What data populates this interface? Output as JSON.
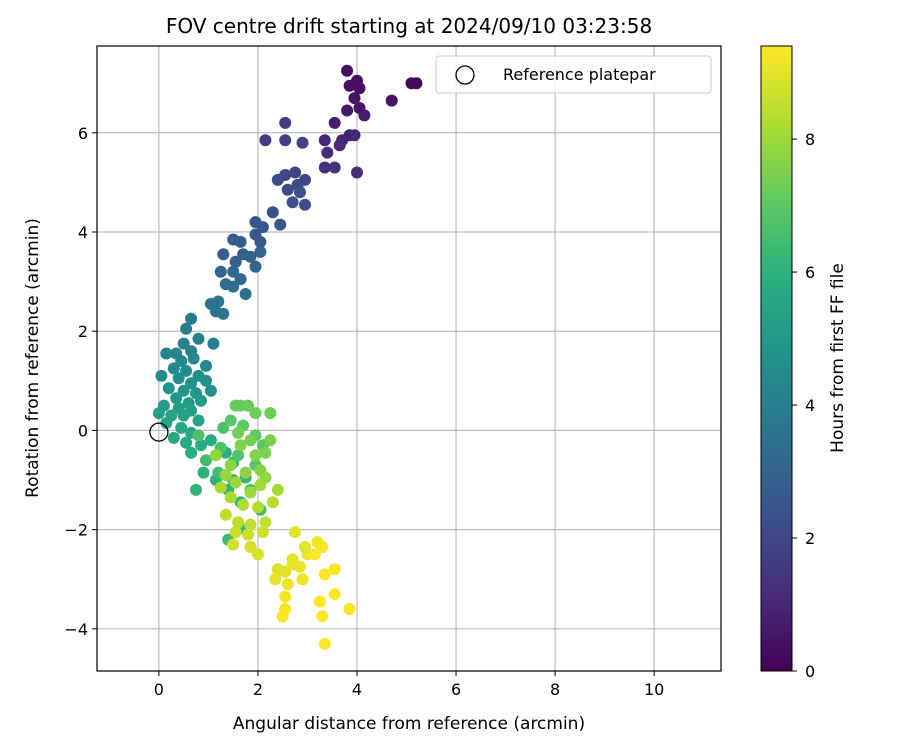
{
  "chart_data": {
    "type": "scatter",
    "title": "FOV centre drift starting at 2024/09/10 03:23:58",
    "xlabel": "Angular distance from reference (arcmin)",
    "ylabel": "Rotation from reference (arcmin)",
    "xlim": [
      -1.25,
      11.35
    ],
    "ylim": [
      -4.85,
      7.75
    ],
    "x_ticks": [
      0,
      2,
      4,
      6,
      8,
      10
    ],
    "y_ticks": [
      -4,
      -2,
      0,
      2,
      4,
      6
    ],
    "x_tick_labels": [
      "0",
      "2",
      "4",
      "6",
      "8",
      "10"
    ],
    "y_tick_labels": [
      "−4",
      "−2",
      "0",
      "2",
      "4",
      "6"
    ],
    "grid": true,
    "legend": {
      "placement": "upper right",
      "entries": [
        "Reference platepar"
      ]
    },
    "reference_point": {
      "x": 0,
      "y": 0,
      "label": "Reference platepar"
    },
    "colorbar": {
      "label": "Hours from first FF file",
      "colormap": "viridis",
      "range": [
        0,
        9.4
      ],
      "ticks": [
        0,
        2,
        4,
        6,
        8
      ],
      "tick_labels": [
        "0",
        "2",
        "4",
        "6",
        "8"
      ]
    },
    "points": [
      [
        5.2,
        7.0,
        0.1
      ],
      [
        5.1,
        7.0,
        0.15
      ],
      [
        3.8,
        7.25,
        0.3
      ],
      [
        4.0,
        7.05,
        0.35
      ],
      [
        3.85,
        6.95,
        0.4
      ],
      [
        4.05,
        6.9,
        0.45
      ],
      [
        3.95,
        6.7,
        0.5
      ],
      [
        4.7,
        6.65,
        0.55
      ],
      [
        4.05,
        6.5,
        0.6
      ],
      [
        3.8,
        6.45,
        0.65
      ],
      [
        4.15,
        6.35,
        0.7
      ],
      [
        3.55,
        6.2,
        0.8
      ],
      [
        3.85,
        5.95,
        0.9
      ],
      [
        3.7,
        5.85,
        0.95
      ],
      [
        3.95,
        5.95,
        1.0
      ],
      [
        3.35,
        5.85,
        1.05
      ],
      [
        3.65,
        5.75,
        1.1
      ],
      [
        3.4,
        5.6,
        1.15
      ],
      [
        4.0,
        5.2,
        1.2
      ],
      [
        3.35,
        5.3,
        1.3
      ],
      [
        3.55,
        5.3,
        1.35
      ],
      [
        2.55,
        6.2,
        1.6
      ],
      [
        2.15,
        5.85,
        1.7
      ],
      [
        2.55,
        5.85,
        1.75
      ],
      [
        2.9,
        5.8,
        1.8
      ],
      [
        2.55,
        5.15,
        1.9
      ],
      [
        2.75,
        5.2,
        1.95
      ],
      [
        2.95,
        5.05,
        2.0
      ],
      [
        2.4,
        5.05,
        2.05
      ],
      [
        2.6,
        4.85,
        2.1
      ],
      [
        2.8,
        4.95,
        2.15
      ],
      [
        2.95,
        4.55,
        2.2
      ],
      [
        2.7,
        4.6,
        2.25
      ],
      [
        2.85,
        4.8,
        2.3
      ],
      [
        2.3,
        4.4,
        2.35
      ],
      [
        2.45,
        4.15,
        2.4
      ],
      [
        1.95,
        4.2,
        2.5
      ],
      [
        2.1,
        4.1,
        2.55
      ],
      [
        1.95,
        3.95,
        2.6
      ],
      [
        2.05,
        3.8,
        2.65
      ],
      [
        1.5,
        3.85,
        2.7
      ],
      [
        1.65,
        3.8,
        2.75
      ],
      [
        1.3,
        3.55,
        2.8
      ],
      [
        1.55,
        3.4,
        2.85
      ],
      [
        1.7,
        3.55,
        2.9
      ],
      [
        1.85,
        3.5,
        2.95
      ],
      [
        2.05,
        3.6,
        3.0
      ],
      [
        1.95,
        3.3,
        3.05
      ],
      [
        1.25,
        3.2,
        3.1
      ],
      [
        1.5,
        3.2,
        3.15
      ],
      [
        1.65,
        3.05,
        3.2
      ],
      [
        1.35,
        2.95,
        3.3
      ],
      [
        1.5,
        2.9,
        3.35
      ],
      [
        1.75,
        2.75,
        3.4
      ],
      [
        1.05,
        2.55,
        3.5
      ],
      [
        1.2,
        2.6,
        3.55
      ],
      [
        1.15,
        2.4,
        3.6
      ],
      [
        1.3,
        2.35,
        3.65
      ],
      [
        0.65,
        2.25,
        3.8
      ],
      [
        0.55,
        2.05,
        3.9
      ],
      [
        0.8,
        1.85,
        4.0
      ],
      [
        1.1,
        1.75,
        4.05
      ],
      [
        0.5,
        1.75,
        4.1
      ],
      [
        0.65,
        1.6,
        4.15
      ],
      [
        0.35,
        1.55,
        4.2
      ],
      [
        0.15,
        1.55,
        4.25
      ],
      [
        0.45,
        1.4,
        4.3
      ],
      [
        0.7,
        1.45,
        4.35
      ],
      [
        0.95,
        1.3,
        4.4
      ],
      [
        0.3,
        1.25,
        4.45
      ],
      [
        0.55,
        1.2,
        4.5
      ],
      [
        0.8,
        1.1,
        4.55
      ],
      [
        0.05,
        1.1,
        4.6
      ],
      [
        0.4,
        1.05,
        4.65
      ],
      [
        0.65,
        0.95,
        4.7
      ],
      [
        0.95,
        1.0,
        4.75
      ],
      [
        1.05,
        0.8,
        4.8
      ],
      [
        0.2,
        0.85,
        4.85
      ],
      [
        0.5,
        0.8,
        4.9
      ],
      [
        0.75,
        0.75,
        4.95
      ],
      [
        0.35,
        0.65,
        5.0
      ],
      [
        0.6,
        0.55,
        5.05
      ],
      [
        0.85,
        0.6,
        5.1
      ],
      [
        0.1,
        0.5,
        5.15
      ],
      [
        0.4,
        0.45,
        5.2
      ],
      [
        0.65,
        0.4,
        5.25
      ],
      [
        0.0,
        0.35,
        5.3
      ],
      [
        0.25,
        0.3,
        5.35
      ],
      [
        0.5,
        0.3,
        5.4
      ],
      [
        0.8,
        0.2,
        5.45
      ],
      [
        0.15,
        0.15,
        5.5
      ],
      [
        0.45,
        0.05,
        5.55
      ],
      [
        0.65,
        -0.05,
        5.6
      ],
      [
        0.3,
        -0.15,
        5.65
      ],
      [
        0.55,
        -0.25,
        5.7
      ],
      [
        0.85,
        -0.3,
        5.75
      ],
      [
        0.65,
        -0.45,
        5.8
      ],
      [
        1.05,
        -0.2,
        5.85
      ],
      [
        1.35,
        -0.45,
        5.9
      ],
      [
        0.9,
        -0.85,
        5.95
      ],
      [
        1.15,
        -1.0,
        6.0
      ],
      [
        0.75,
        -1.2,
        6.05
      ],
      [
        1.5,
        -0.65,
        6.1
      ],
      [
        1.75,
        -0.95,
        6.15
      ],
      [
        1.4,
        -1.2,
        6.2
      ],
      [
        1.65,
        -1.45,
        6.25
      ],
      [
        1.4,
        -2.2,
        6.3
      ],
      [
        2.05,
        -1.6,
        6.35
      ],
      [
        1.75,
        -2.0,
        6.4
      ],
      [
        0.95,
        -0.6,
        6.45
      ],
      [
        1.2,
        -0.85,
        6.5
      ],
      [
        1.5,
        -1.0,
        6.55
      ],
      [
        1.85,
        -1.2,
        6.6
      ],
      [
        1.3,
        0.05,
        6.65
      ],
      [
        0.8,
        -0.1,
        6.7
      ],
      [
        1.25,
        -0.35,
        6.75
      ],
      [
        1.6,
        -0.5,
        6.8
      ],
      [
        1.95,
        -0.7,
        6.85
      ],
      [
        2.1,
        -0.3,
        6.9
      ],
      [
        1.45,
        0.2,
        6.95
      ],
      [
        1.7,
        0.1,
        7.0
      ],
      [
        1.95,
        -0.1,
        7.05
      ],
      [
        1.65,
        0.5,
        7.1
      ],
      [
        1.55,
        0.5,
        7.15
      ],
      [
        1.8,
        0.5,
        7.2
      ],
      [
        1.95,
        0.35,
        7.25
      ],
      [
        2.25,
        0.35,
        7.3
      ],
      [
        1.6,
        -0.05,
        7.35
      ],
      [
        1.85,
        -0.2,
        7.4
      ],
      [
        2.15,
        -0.45,
        7.45
      ],
      [
        2.25,
        -0.2,
        7.5
      ],
      [
        1.65,
        -0.3,
        7.55
      ],
      [
        1.95,
        -0.5,
        7.6
      ],
      [
        2.05,
        -0.8,
        7.65
      ],
      [
        1.45,
        -0.7,
        7.7
      ],
      [
        1.75,
        -0.85,
        7.75
      ],
      [
        2.15,
        -0.95,
        7.8
      ],
      [
        1.15,
        -0.5,
        7.85
      ],
      [
        1.35,
        -0.9,
        7.9
      ],
      [
        1.55,
        -1.05,
        7.95
      ],
      [
        1.85,
        -1.25,
        8.0
      ],
      [
        2.05,
        -1.1,
        8.05
      ],
      [
        2.4,
        -1.2,
        8.1
      ],
      [
        1.25,
        -1.15,
        8.15
      ],
      [
        1.45,
        -1.35,
        8.2
      ],
      [
        1.7,
        -1.5,
        8.25
      ],
      [
        2.0,
        -1.55,
        8.3
      ],
      [
        2.3,
        -1.45,
        8.35
      ],
      [
        1.35,
        -1.7,
        8.4
      ],
      [
        1.6,
        -1.85,
        8.45
      ],
      [
        1.85,
        -1.9,
        8.5
      ],
      [
        2.15,
        -1.85,
        8.55
      ],
      [
        1.55,
        -2.05,
        8.6
      ],
      [
        1.8,
        -2.1,
        8.65
      ],
      [
        2.1,
        -2.05,
        8.7
      ],
      [
        1.5,
        -2.3,
        8.75
      ],
      [
        1.85,
        -2.35,
        8.8
      ],
      [
        2.0,
        -2.5,
        8.85
      ],
      [
        2.4,
        -2.8,
        8.9
      ],
      [
        2.7,
        -2.6,
        8.95
      ],
      [
        2.55,
        -2.85,
        9.0
      ],
      [
        2.85,
        -2.75,
        9.05
      ],
      [
        2.35,
        -3.0,
        9.1
      ],
      [
        2.6,
        -3.1,
        9.15
      ],
      [
        2.9,
        -3.0,
        9.2
      ],
      [
        2.55,
        -3.35,
        9.25
      ],
      [
        2.55,
        -3.6,
        9.3
      ],
      [
        2.5,
        -3.75,
        9.3
      ],
      [
        3.0,
        -2.5,
        9.2
      ],
      [
        3.2,
        -2.25,
        9.25
      ],
      [
        3.3,
        -2.35,
        9.3
      ],
      [
        3.15,
        -2.5,
        9.35
      ],
      [
        3.55,
        -2.8,
        9.3
      ],
      [
        3.35,
        -2.9,
        9.35
      ],
      [
        3.55,
        -3.3,
        9.4
      ],
      [
        3.25,
        -3.45,
        9.35
      ],
      [
        3.3,
        -3.75,
        9.4
      ],
      [
        3.85,
        -3.6,
        9.4
      ],
      [
        3.35,
        -4.3,
        9.4
      ],
      [
        2.75,
        -2.05,
        9.0
      ],
      [
        2.95,
        -2.35,
        9.05
      ],
      [
        2.7,
        -2.7,
        9.1
      ]
    ]
  }
}
